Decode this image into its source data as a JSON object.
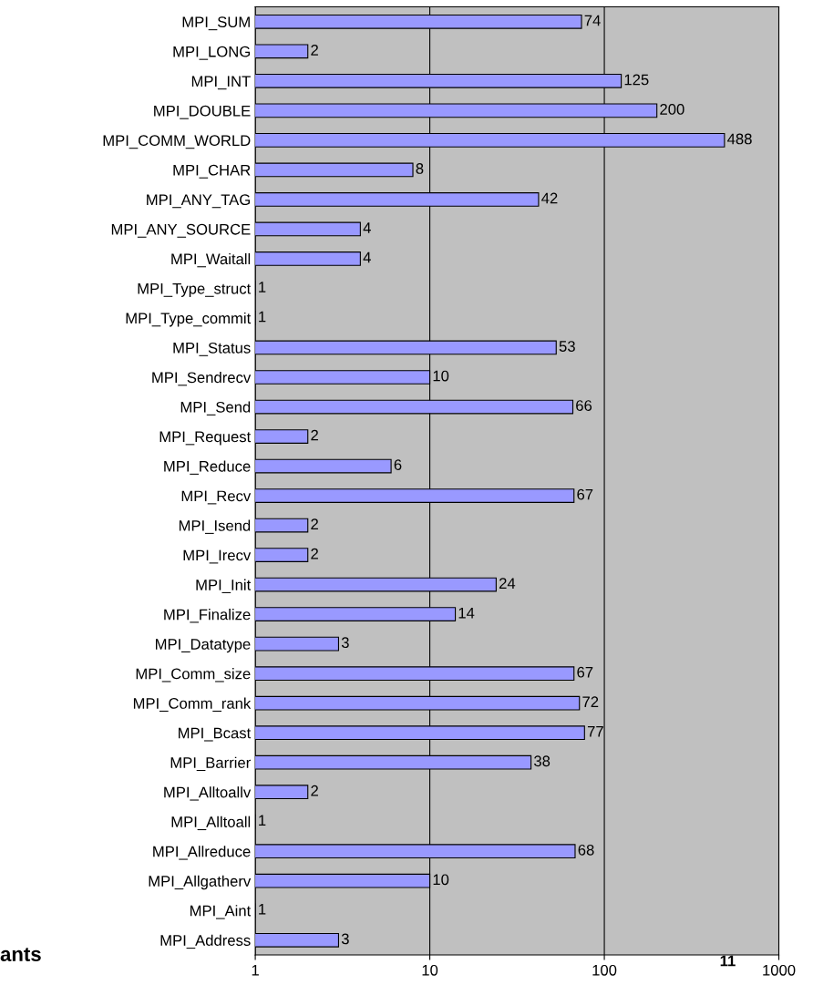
{
  "chart_data": {
    "type": "bar",
    "orientation": "horizontal",
    "log": "x",
    "categories": [
      "MPI_SUM",
      "MPI_LONG",
      "MPI_INT",
      "MPI_DOUBLE",
      "MPI_COMM_WORLD",
      "MPI_CHAR",
      "MPI_ANY_TAG",
      "MPI_ANY_SOURCE",
      "MPI_Waitall",
      "MPI_Type_struct",
      "MPI_Type_commit",
      "MPI_Status",
      "MPI_Sendrecv",
      "MPI_Send",
      "MPI_Request",
      "MPI_Reduce",
      "MPI_Recv",
      "MPI_Isend",
      "MPI_Irecv",
      "MPI_Init",
      "MPI_Finalize",
      "MPI_Datatype",
      "MPI_Comm_size",
      "MPI_Comm_rank",
      "MPI_Bcast",
      "MPI_Barrier",
      "MPI_Alltoallv",
      "MPI_Alltoall",
      "MPI_Allreduce",
      "MPI_Allgatherv",
      "MPI_Aint",
      "MPI_Address"
    ],
    "values": [
      74,
      2,
      125,
      200,
      488,
      8,
      42,
      4,
      4,
      1,
      1,
      53,
      10,
      66,
      2,
      6,
      67,
      2,
      2,
      24,
      14,
      3,
      67,
      72,
      77,
      38,
      2,
      1,
      68,
      10,
      1,
      3
    ],
    "color": "#9999ff",
    "xlim": [
      1,
      1000
    ],
    "xticks": [
      1,
      10,
      100,
      1000
    ],
    "grid": "x",
    "data_labels": true,
    "annotations": [
      "ants",
      "11"
    ]
  }
}
